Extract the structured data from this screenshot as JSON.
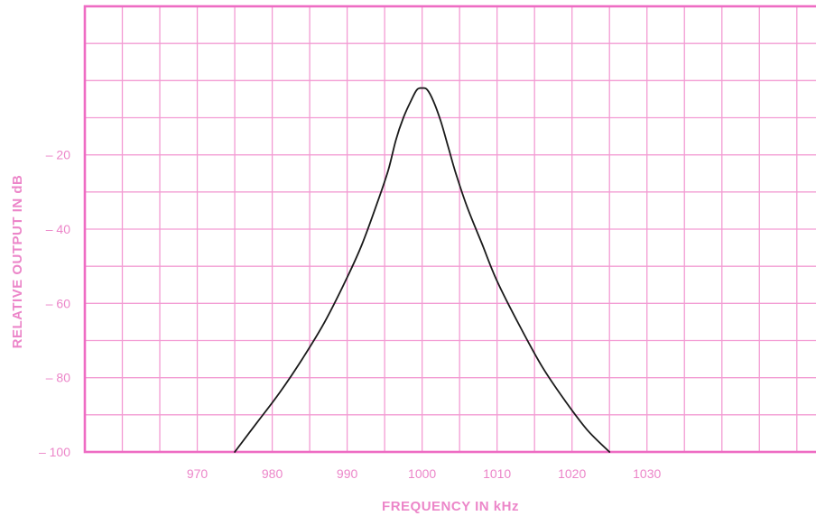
{
  "chart_data": {
    "type": "line",
    "xlabel": "FREQUENCY IN kHz",
    "ylabel": "RELATIVE OUTPUT IN dB",
    "x_ticks": [
      "970",
      "980",
      "990",
      "1000",
      "1010",
      "1020",
      "1030"
    ],
    "y_ticks": [
      "– 20",
      "– 40",
      "– 60",
      "– 80",
      "– 100"
    ],
    "xlim": [
      955,
      1054
    ],
    "ylim": [
      -100,
      20
    ],
    "y_scale_note_ticks": [
      -20,
      -40,
      -60,
      -80,
      -100
    ],
    "grid": true,
    "colors": {
      "grid": "#f39bd3",
      "frame": "#ee6cc3",
      "text": "#ec86c9",
      "curve": "#1a1a1a"
    },
    "series": [
      {
        "x": [
          975,
          978,
          981,
          984,
          987,
          990,
          992,
          994,
          995.5,
          996.5,
          997.5,
          998.5,
          999.3,
          1000,
          1000.7,
          1001.5,
          1002.5,
          1003.5,
          1004.5,
          1006,
          1008,
          1010,
          1013,
          1016,
          1019,
          1022,
          1025
        ],
        "y": [
          -100,
          -92,
          -84,
          -75,
          -65,
          -53,
          -44,
          -33,
          -24,
          -16,
          -10,
          -5.5,
          -2.5,
          -2,
          -2.5,
          -5.5,
          -11,
          -18,
          -25,
          -34,
          -44,
          -54,
          -66,
          -77,
          -86,
          -94,
          -100
        ]
      }
    ]
  }
}
